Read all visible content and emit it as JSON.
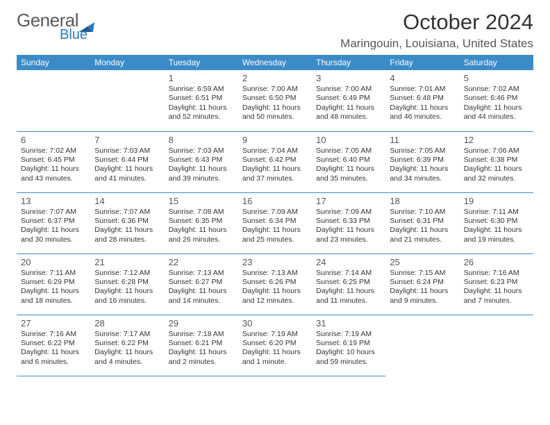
{
  "logo": {
    "part1": "General",
    "part2": "Blue"
  },
  "title": "October 2024",
  "location": "Maringouin, Louisiana, United States",
  "colors": {
    "header_bg": "#3b8bc9",
    "header_text": "#ffffff",
    "border": "#3b8bc9",
    "daynum": "#555555",
    "daytext": "#333333",
    "logo_gray": "#595959",
    "logo_blue": "#2a7ac0",
    "background": "#ffffff"
  },
  "typography": {
    "title_fontsize": 31,
    "location_fontsize": 17,
    "header_fontsize": 12,
    "daynum_fontsize": 13,
    "daytext_fontsize": 10.5,
    "font_family": "Arial"
  },
  "weekday_headers": [
    "Sunday",
    "Monday",
    "Tuesday",
    "Wednesday",
    "Thursday",
    "Friday",
    "Saturday"
  ],
  "weeks": [
    [
      null,
      null,
      {
        "d": "1",
        "sr": "6:59 AM",
        "ss": "6:51 PM",
        "dl": "11 hours and 52 minutes."
      },
      {
        "d": "2",
        "sr": "7:00 AM",
        "ss": "6:50 PM",
        "dl": "11 hours and 50 minutes."
      },
      {
        "d": "3",
        "sr": "7:00 AM",
        "ss": "6:49 PM",
        "dl": "11 hours and 48 minutes."
      },
      {
        "d": "4",
        "sr": "7:01 AM",
        "ss": "6:48 PM",
        "dl": "11 hours and 46 minutes."
      },
      {
        "d": "5",
        "sr": "7:02 AM",
        "ss": "6:46 PM",
        "dl": "11 hours and 44 minutes."
      }
    ],
    [
      {
        "d": "6",
        "sr": "7:02 AM",
        "ss": "6:45 PM",
        "dl": "11 hours and 43 minutes."
      },
      {
        "d": "7",
        "sr": "7:03 AM",
        "ss": "6:44 PM",
        "dl": "11 hours and 41 minutes."
      },
      {
        "d": "8",
        "sr": "7:03 AM",
        "ss": "6:43 PM",
        "dl": "11 hours and 39 minutes."
      },
      {
        "d": "9",
        "sr": "7:04 AM",
        "ss": "6:42 PM",
        "dl": "11 hours and 37 minutes."
      },
      {
        "d": "10",
        "sr": "7:05 AM",
        "ss": "6:40 PM",
        "dl": "11 hours and 35 minutes."
      },
      {
        "d": "11",
        "sr": "7:05 AM",
        "ss": "6:39 PM",
        "dl": "11 hours and 34 minutes."
      },
      {
        "d": "12",
        "sr": "7:06 AM",
        "ss": "6:38 PM",
        "dl": "11 hours and 32 minutes."
      }
    ],
    [
      {
        "d": "13",
        "sr": "7:07 AM",
        "ss": "6:37 PM",
        "dl": "11 hours and 30 minutes."
      },
      {
        "d": "14",
        "sr": "7:07 AM",
        "ss": "6:36 PM",
        "dl": "11 hours and 28 minutes."
      },
      {
        "d": "15",
        "sr": "7:08 AM",
        "ss": "6:35 PM",
        "dl": "11 hours and 26 minutes."
      },
      {
        "d": "16",
        "sr": "7:09 AM",
        "ss": "6:34 PM",
        "dl": "11 hours and 25 minutes."
      },
      {
        "d": "17",
        "sr": "7:09 AM",
        "ss": "6:33 PM",
        "dl": "11 hours and 23 minutes."
      },
      {
        "d": "18",
        "sr": "7:10 AM",
        "ss": "6:31 PM",
        "dl": "11 hours and 21 minutes."
      },
      {
        "d": "19",
        "sr": "7:11 AM",
        "ss": "6:30 PM",
        "dl": "11 hours and 19 minutes."
      }
    ],
    [
      {
        "d": "20",
        "sr": "7:11 AM",
        "ss": "6:29 PM",
        "dl": "11 hours and 18 minutes."
      },
      {
        "d": "21",
        "sr": "7:12 AM",
        "ss": "6:28 PM",
        "dl": "11 hours and 16 minutes."
      },
      {
        "d": "22",
        "sr": "7:13 AM",
        "ss": "6:27 PM",
        "dl": "11 hours and 14 minutes."
      },
      {
        "d": "23",
        "sr": "7:13 AM",
        "ss": "6:26 PM",
        "dl": "11 hours and 12 minutes."
      },
      {
        "d": "24",
        "sr": "7:14 AM",
        "ss": "6:25 PM",
        "dl": "11 hours and 11 minutes."
      },
      {
        "d": "25",
        "sr": "7:15 AM",
        "ss": "6:24 PM",
        "dl": "11 hours and 9 minutes."
      },
      {
        "d": "26",
        "sr": "7:16 AM",
        "ss": "6:23 PM",
        "dl": "11 hours and 7 minutes."
      }
    ],
    [
      {
        "d": "27",
        "sr": "7:16 AM",
        "ss": "6:22 PM",
        "dl": "11 hours and 6 minutes."
      },
      {
        "d": "28",
        "sr": "7:17 AM",
        "ss": "6:22 PM",
        "dl": "11 hours and 4 minutes."
      },
      {
        "d": "29",
        "sr": "7:18 AM",
        "ss": "6:21 PM",
        "dl": "11 hours and 2 minutes."
      },
      {
        "d": "30",
        "sr": "7:19 AM",
        "ss": "6:20 PM",
        "dl": "11 hours and 1 minute."
      },
      {
        "d": "31",
        "sr": "7:19 AM",
        "ss": "6:19 PM",
        "dl": "10 hours and 59 minutes."
      },
      null,
      null
    ]
  ],
  "labels": {
    "sunrise": "Sunrise:",
    "sunset": "Sunset:",
    "daylight": "Daylight:"
  }
}
